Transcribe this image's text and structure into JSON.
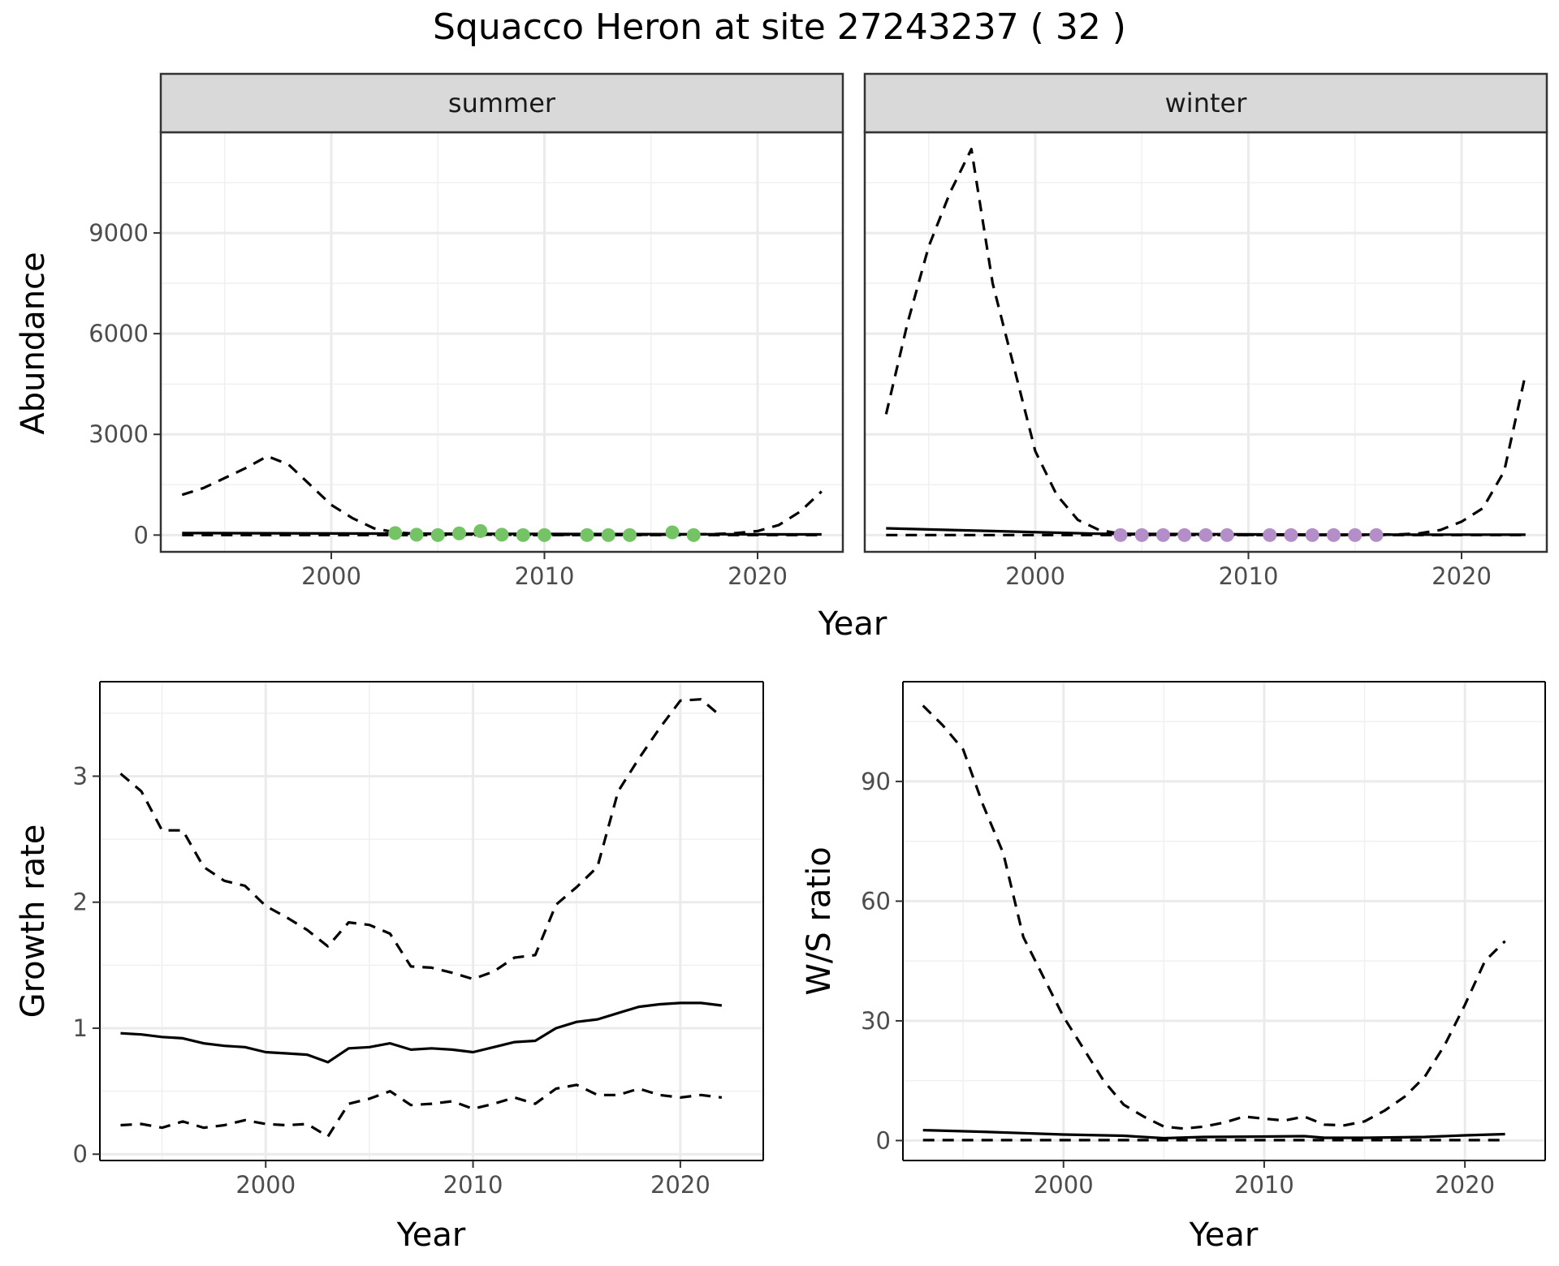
{
  "title": "Squacco Heron at site 27243237 ( 32 )",
  "chart_data": [
    {
      "type": "line",
      "facet": "summer",
      "xlabel": "Year",
      "ylabel": "Abundance",
      "xlim": [
        1992,
        2024
      ],
      "ylim": [
        -500,
        12000
      ],
      "xticks": [
        2000,
        2010,
        2020
      ],
      "yticks": [
        0,
        3000,
        6000,
        9000
      ],
      "grid": true,
      "point_color": "#74c365",
      "series": [
        {
          "role": "estimate",
          "style": "solid",
          "x": [
            1993,
            2003,
            2013,
            2023
          ],
          "y": [
            60,
            45,
            30,
            20
          ]
        },
        {
          "role": "upper",
          "style": "dashed",
          "x": [
            1993,
            1994,
            1995,
            1996,
            1997,
            1998,
            1999,
            2000,
            2001,
            2002,
            2003,
            2004,
            2005,
            2006,
            2007,
            2008,
            2009,
            2010,
            2011,
            2012,
            2013,
            2014,
            2015,
            2016,
            2017,
            2018,
            2019,
            2020,
            2021,
            2022,
            2023
          ],
          "y": [
            1200,
            1400,
            1700,
            2000,
            2350,
            2100,
            1500,
            900,
            500,
            200,
            80,
            40,
            30,
            20,
            15,
            10,
            10,
            10,
            10,
            10,
            10,
            10,
            10,
            15,
            20,
            30,
            60,
            120,
            300,
            700,
            1300
          ]
        },
        {
          "role": "lower",
          "style": "dashed",
          "x": [
            1993,
            2003,
            2013,
            2023
          ],
          "y": [
            0,
            0,
            0,
            0
          ]
        }
      ],
      "points": {
        "x": [
          2003,
          2004,
          2005,
          2006,
          2007,
          2008,
          2009,
          2010,
          2012,
          2013,
          2014,
          2016,
          2017
        ],
        "y": [
          60,
          10,
          0,
          50,
          120,
          10,
          0,
          0,
          0,
          0,
          0,
          80,
          0
        ]
      }
    },
    {
      "type": "line",
      "facet": "winter",
      "xlabel": "Year",
      "ylabel": "Abundance",
      "xlim": [
        1992,
        2024
      ],
      "ylim": [
        -500,
        12000
      ],
      "xticks": [
        2000,
        2010,
        2020
      ],
      "yticks": [
        0,
        3000,
        6000,
        9000
      ],
      "grid": true,
      "point_color": "#b48ec8",
      "series": [
        {
          "role": "estimate",
          "style": "solid",
          "x": [
            1993,
            1998,
            2003,
            2013,
            2023
          ],
          "y": [
            200,
            120,
            40,
            15,
            10
          ]
        },
        {
          "role": "upper",
          "style": "dashed",
          "x": [
            1993,
            1994,
            1995,
            1996,
            1997,
            1998,
            1999,
            2000,
            2001,
            2002,
            2003,
            2004,
            2005,
            2006,
            2007,
            2008,
            2009,
            2010,
            2011,
            2012,
            2013,
            2014,
            2015,
            2016,
            2017,
            2018,
            2019,
            2020,
            2021,
            2022,
            2023
          ],
          "y": [
            3600,
            6300,
            8600,
            10200,
            11500,
            7500,
            5000,
            2500,
            1200,
            450,
            150,
            40,
            10,
            5,
            5,
            5,
            5,
            5,
            5,
            5,
            5,
            5,
            5,
            10,
            20,
            50,
            150,
            400,
            800,
            1900,
            4800
          ]
        },
        {
          "role": "lower",
          "style": "dashed",
          "x": [
            1993,
            2003,
            2013,
            2023
          ],
          "y": [
            0,
            0,
            0,
            0
          ]
        }
      ],
      "points": {
        "x": [
          2004,
          2005,
          2006,
          2007,
          2008,
          2009,
          2011,
          2012,
          2013,
          2014,
          2015,
          2016
        ],
        "y": [
          0,
          0,
          0,
          0,
          0,
          0,
          0,
          0,
          0,
          0,
          0,
          0
        ]
      }
    },
    {
      "type": "line",
      "facet": "",
      "xlabel": "Year",
      "ylabel": "Growth rate",
      "xlim": [
        1992,
        2024
      ],
      "ylim": [
        -0.05,
        3.75
      ],
      "xticks": [
        2000,
        2010,
        2020
      ],
      "yticks": [
        0,
        1,
        2,
        3
      ],
      "grid": true,
      "series": [
        {
          "role": "estimate",
          "style": "solid",
          "x": [
            1993,
            1994,
            1995,
            1996,
            1997,
            1998,
            1999,
            2000,
            2001,
            2002,
            2003,
            2004,
            2005,
            2006,
            2007,
            2008,
            2009,
            2010,
            2011,
            2012,
            2013,
            2014,
            2015,
            2016,
            2017,
            2018,
            2019,
            2020,
            2021,
            2022
          ],
          "y": [
            0.96,
            0.95,
            0.93,
            0.92,
            0.88,
            0.86,
            0.85,
            0.81,
            0.8,
            0.79,
            0.73,
            0.84,
            0.85,
            0.88,
            0.83,
            0.84,
            0.83,
            0.81,
            0.85,
            0.89,
            0.9,
            1.0,
            1.05,
            1.07,
            1.12,
            1.17,
            1.19,
            1.2,
            1.2,
            1.18
          ]
        },
        {
          "role": "upper",
          "style": "dashed",
          "x": [
            1993,
            1994,
            1995,
            1996,
            1997,
            1998,
            1999,
            2000,
            2001,
            2002,
            2003,
            2004,
            2005,
            2006,
            2007,
            2008,
            2009,
            2010,
            2011,
            2012,
            2013,
            2014,
            2015,
            2016,
            2017,
            2018,
            2019,
            2020,
            2021,
            2022
          ],
          "y": [
            3.02,
            2.88,
            2.57,
            2.57,
            2.28,
            2.17,
            2.13,
            1.97,
            1.88,
            1.78,
            1.65,
            1.84,
            1.82,
            1.75,
            1.49,
            1.48,
            1.44,
            1.39,
            1.45,
            1.56,
            1.58,
            1.98,
            2.12,
            2.28,
            2.88,
            3.14,
            3.38,
            3.6,
            3.61,
            3.47
          ]
        },
        {
          "role": "lower",
          "style": "dashed",
          "x": [
            1993,
            1994,
            1995,
            1996,
            1997,
            1998,
            1999,
            2000,
            2001,
            2002,
            2003,
            2004,
            2005,
            2006,
            2007,
            2008,
            2009,
            2010,
            2011,
            2012,
            2013,
            2014,
            2015,
            2016,
            2017,
            2018,
            2019,
            2020,
            2021,
            2022
          ],
          "y": [
            0.23,
            0.24,
            0.21,
            0.26,
            0.21,
            0.23,
            0.27,
            0.24,
            0.23,
            0.24,
            0.14,
            0.4,
            0.44,
            0.5,
            0.39,
            0.4,
            0.42,
            0.36,
            0.4,
            0.45,
            0.4,
            0.52,
            0.55,
            0.47,
            0.47,
            0.52,
            0.47,
            0.45,
            0.47,
            0.45
          ]
        }
      ]
    },
    {
      "type": "line",
      "facet": "",
      "xlabel": "Year",
      "ylabel": "W/S ratio",
      "xlim": [
        1992,
        2024
      ],
      "ylim": [
        -5,
        115
      ],
      "xticks": [
        2000,
        2010,
        2020
      ],
      "yticks": [
        0,
        30,
        60,
        90
      ],
      "grid": true,
      "series": [
        {
          "role": "estimate",
          "style": "solid",
          "x": [
            1993,
            1996,
            2000,
            2003,
            2005,
            2007,
            2010,
            2012,
            2013,
            2015,
            2018,
            2020,
            2022
          ],
          "y": [
            2.6,
            2.2,
            1.5,
            1.2,
            0.6,
            0.9,
            1.0,
            1.1,
            0.7,
            0.7,
            0.9,
            1.3,
            1.6
          ]
        },
        {
          "role": "upper",
          "style": "dashed",
          "x": [
            1993,
            1994,
            1995,
            1996,
            1997,
            1998,
            1999,
            2000,
            2001,
            2002,
            2003,
            2004,
            2005,
            2006,
            2007,
            2008,
            2009,
            2010,
            2011,
            2012,
            2013,
            2014,
            2015,
            2016,
            2017,
            2018,
            2019,
            2020,
            2021,
            2022
          ],
          "y": [
            109,
            104,
            98,
            84,
            72,
            51,
            41,
            31,
            23,
            15,
            9,
            6,
            3.5,
            3,
            3.5,
            4.5,
            6,
            5.5,
            5,
            6,
            4,
            3.8,
            4.8,
            7.5,
            11,
            16,
            24,
            34,
            45,
            50
          ]
        },
        {
          "role": "lower",
          "style": "dashed",
          "x": [
            1993,
            2000,
            2010,
            2022
          ],
          "y": [
            0.1,
            0.1,
            0.1,
            0.1
          ]
        }
      ]
    }
  ]
}
